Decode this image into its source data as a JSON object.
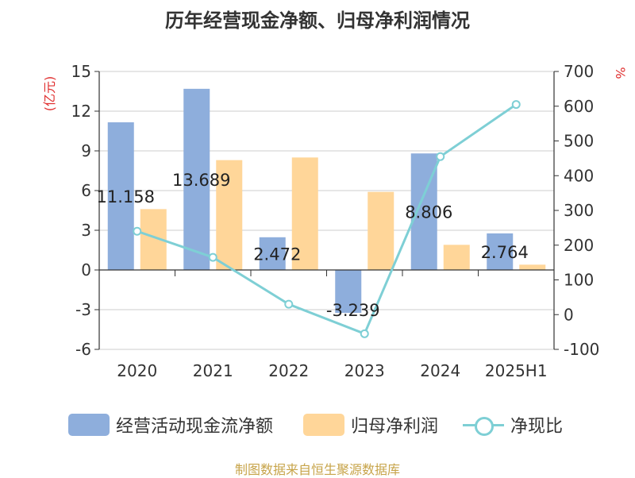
{
  "chart_data": {
    "type": "bar",
    "title": "历年经营现金净额、归母净利润情况",
    "source": "制图数据来自恒生聚源数据库",
    "categories": [
      "2020",
      "2021",
      "2022",
      "2023",
      "2024",
      "2025H1"
    ],
    "y_left": {
      "label": "(亿元)",
      "ticks": [
        "15",
        "12",
        "9",
        "6",
        "3",
        "0",
        "-3",
        "-6"
      ],
      "min": -6,
      "max": 15
    },
    "y_right": {
      "label": "%",
      "ticks": [
        "700",
        "600",
        "500",
        "400",
        "300",
        "200",
        "100",
        "0",
        "-100"
      ],
      "min": -100,
      "max": 700
    },
    "grid": true,
    "legend_position": "bottom",
    "series": [
      {
        "name": "经营活动现金流净额",
        "type": "bar",
        "axis": "left",
        "color": "#8eaedc",
        "values": [
          11.158,
          13.689,
          2.472,
          -3.239,
          8.806,
          2.764
        ],
        "labels": [
          "11.158",
          "13.689",
          "2.472",
          "-3.239",
          "8.806",
          "2.764"
        ]
      },
      {
        "name": "归母净利润",
        "type": "bar",
        "axis": "left",
        "color": "#ffd699",
        "values": [
          4.6,
          8.3,
          8.5,
          5.9,
          1.9,
          0.4
        ]
      },
      {
        "name": "净现比",
        "type": "line",
        "axis": "right",
        "color": "#7ecfd5",
        "values": [
          240,
          165,
          30,
          -55,
          455,
          605
        ]
      }
    ]
  }
}
